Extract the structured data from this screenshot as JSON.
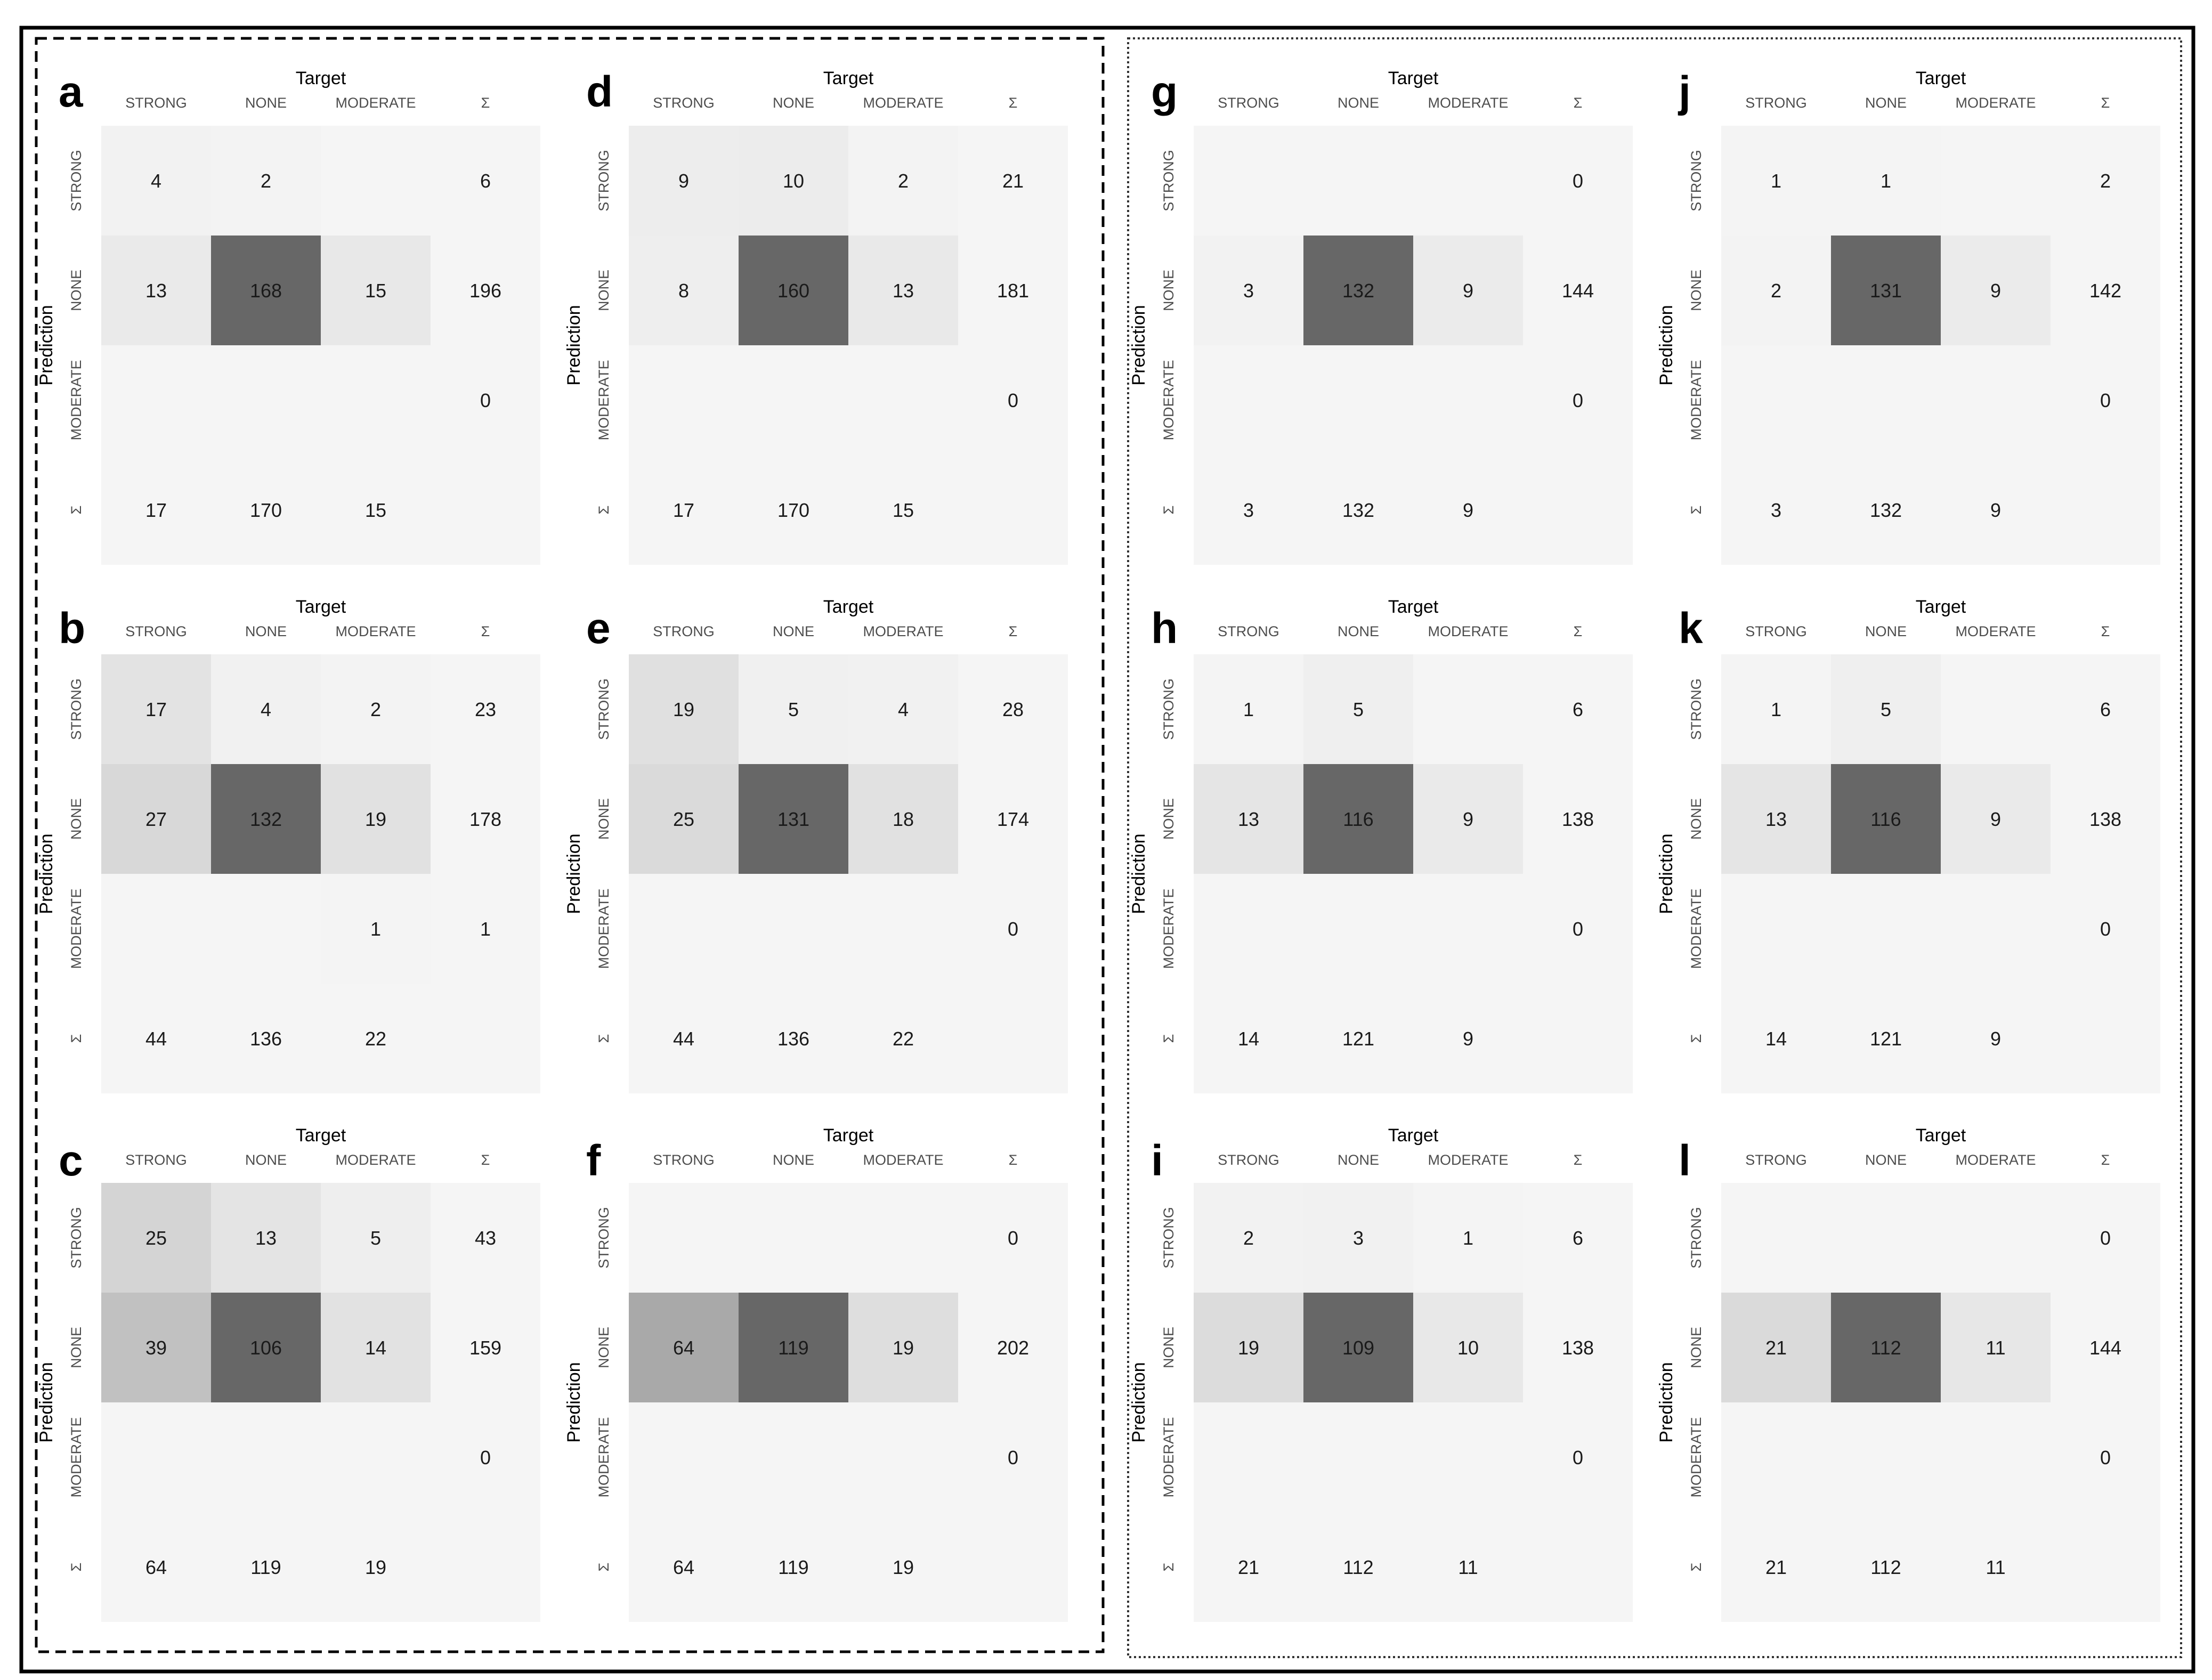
{
  "chart_data": {
    "type": "heatmap",
    "x_title": "Target",
    "y_title": "Prediction",
    "categories": [
      "STRONG",
      "NONE",
      "MODERATE"
    ],
    "sum_label": "Σ",
    "colors": {
      "low": "#f5f5f5",
      "high": "#676767",
      "sum_cell": "#f5f5f5"
    },
    "panels": [
      {
        "letter": "a",
        "matrix": [
          [
            4,
            2,
            null
          ],
          [
            13,
            168,
            15
          ],
          [
            null,
            null,
            null
          ]
        ],
        "row_sums": [
          6,
          196,
          0
        ],
        "col_sums": [
          17,
          170,
          15
        ]
      },
      {
        "letter": "b",
        "matrix": [
          [
            17,
            4,
            2
          ],
          [
            27,
            132,
            19
          ],
          [
            null,
            null,
            1
          ]
        ],
        "row_sums": [
          23,
          178,
          1
        ],
        "col_sums": [
          44,
          136,
          22
        ]
      },
      {
        "letter": "c",
        "matrix": [
          [
            25,
            13,
            5
          ],
          [
            39,
            106,
            14
          ],
          [
            null,
            null,
            null
          ]
        ],
        "row_sums": [
          43,
          159,
          0
        ],
        "col_sums": [
          64,
          119,
          19
        ]
      },
      {
        "letter": "d",
        "matrix": [
          [
            9,
            10,
            2
          ],
          [
            8,
            160,
            13
          ],
          [
            null,
            null,
            null
          ]
        ],
        "row_sums": [
          21,
          181,
          0
        ],
        "col_sums": [
          17,
          170,
          15
        ]
      },
      {
        "letter": "e",
        "matrix": [
          [
            19,
            5,
            4
          ],
          [
            25,
            131,
            18
          ],
          [
            null,
            null,
            null
          ]
        ],
        "row_sums": [
          28,
          174,
          0
        ],
        "col_sums": [
          44,
          136,
          22
        ]
      },
      {
        "letter": "f",
        "matrix": [
          [
            null,
            null,
            null
          ],
          [
            64,
            119,
            19
          ],
          [
            null,
            null,
            null
          ]
        ],
        "row_sums": [
          0,
          202,
          0
        ],
        "col_sums": [
          64,
          119,
          19
        ]
      },
      {
        "letter": "g",
        "matrix": [
          [
            null,
            null,
            null
          ],
          [
            3,
            132,
            9
          ],
          [
            null,
            null,
            null
          ]
        ],
        "row_sums": [
          0,
          144,
          0
        ],
        "col_sums": [
          3,
          132,
          9
        ]
      },
      {
        "letter": "h",
        "matrix": [
          [
            1,
            5,
            null
          ],
          [
            13,
            116,
            9
          ],
          [
            null,
            null,
            null
          ]
        ],
        "row_sums": [
          6,
          138,
          0
        ],
        "col_sums": [
          14,
          121,
          9
        ]
      },
      {
        "letter": "i",
        "matrix": [
          [
            2,
            3,
            1
          ],
          [
            19,
            109,
            10
          ],
          [
            null,
            null,
            null
          ]
        ],
        "row_sums": [
          6,
          138,
          0
        ],
        "col_sums": [
          21,
          112,
          11
        ]
      },
      {
        "letter": "j",
        "matrix": [
          [
            1,
            1,
            null
          ],
          [
            2,
            131,
            9
          ],
          [
            null,
            null,
            null
          ]
        ],
        "row_sums": [
          2,
          142,
          0
        ],
        "col_sums": [
          3,
          132,
          9
        ]
      },
      {
        "letter": "k",
        "matrix": [
          [
            1,
            5,
            null
          ],
          [
            13,
            116,
            9
          ],
          [
            null,
            null,
            null
          ]
        ],
        "row_sums": [
          6,
          138,
          0
        ],
        "col_sums": [
          14,
          121,
          9
        ]
      },
      {
        "letter": "l",
        "matrix": [
          [
            null,
            null,
            null
          ],
          [
            21,
            112,
            11
          ],
          [
            null,
            null,
            null
          ]
        ],
        "row_sums": [
          0,
          144,
          0
        ],
        "col_sums": [
          21,
          112,
          11
        ]
      }
    ]
  }
}
